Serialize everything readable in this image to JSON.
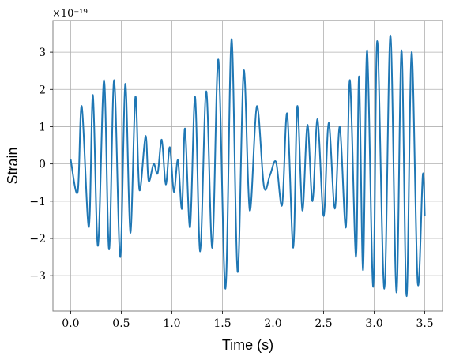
{
  "chart_data": {
    "type": "line",
    "xlabel": "Time (s)",
    "ylabel": "Strain",
    "y_offset_label": "×10⁻¹⁹",
    "xlim": [
      -0.175,
      3.675
    ],
    "ylim": [
      -3.95,
      3.85
    ],
    "x_ticks": [
      0.0,
      0.5,
      1.0,
      1.5,
      2.0,
      2.5,
      3.0,
      3.5
    ],
    "x_tick_labels": [
      "0.0",
      "0.5",
      "1.0",
      "1.5",
      "2.0",
      "2.5",
      "3.0",
      "3.5"
    ],
    "y_ticks": [
      -3,
      -2,
      -1,
      0,
      1,
      2,
      3
    ],
    "y_tick_labels": [
      "−3",
      "−2",
      "−1",
      "0",
      "1",
      "2",
      "3"
    ],
    "grid": true,
    "series": [
      {
        "color": "#1f77b4",
        "x": [
          0.0,
          0.07,
          0.11,
          0.18,
          0.22,
          0.27,
          0.33,
          0.38,
          0.43,
          0.49,
          0.54,
          0.59,
          0.64,
          0.68,
          0.74,
          0.77,
          0.82,
          0.86,
          0.9,
          0.94,
          0.98,
          1.02,
          1.06,
          1.1,
          1.13,
          1.18,
          1.23,
          1.28,
          1.34,
          1.4,
          1.46,
          1.53,
          1.59,
          1.65,
          1.71,
          1.77,
          1.84,
          1.91,
          1.97,
          2.03,
          2.09,
          2.14,
          2.2,
          2.24,
          2.29,
          2.34,
          2.39,
          2.44,
          2.5,
          2.55,
          2.61,
          2.66,
          2.72,
          2.76,
          2.82,
          2.85,
          2.89,
          2.93,
          2.99,
          3.03,
          3.1,
          3.16,
          3.22,
          3.27,
          3.32,
          3.37,
          3.43,
          3.48,
          3.5
        ],
        "y": [
          0.12,
          -0.75,
          1.55,
          -1.7,
          1.85,
          -2.2,
          2.25,
          -2.3,
          2.25,
          -2.5,
          2.15,
          -1.85,
          1.8,
          -0.7,
          0.75,
          -0.45,
          0.0,
          -0.25,
          0.65,
          -0.55,
          0.45,
          -0.75,
          0.1,
          -1.2,
          0.95,
          -1.7,
          1.8,
          -2.35,
          1.95,
          -2.25,
          2.8,
          -3.35,
          3.35,
          -2.9,
          2.5,
          -1.25,
          1.55,
          -0.6,
          -0.3,
          0.05,
          -1.1,
          1.35,
          -2.25,
          1.55,
          -1.25,
          1.05,
          -1.0,
          1.2,
          -1.4,
          1.1,
          -1.2,
          1.0,
          -1.7,
          2.25,
          -2.5,
          2.35,
          -2.85,
          3.05,
          -3.3,
          3.3,
          -3.35,
          3.45,
          -3.45,
          3.05,
          -3.55,
          3.0,
          -3.2,
          -0.3,
          -1.4
        ]
      }
    ]
  }
}
